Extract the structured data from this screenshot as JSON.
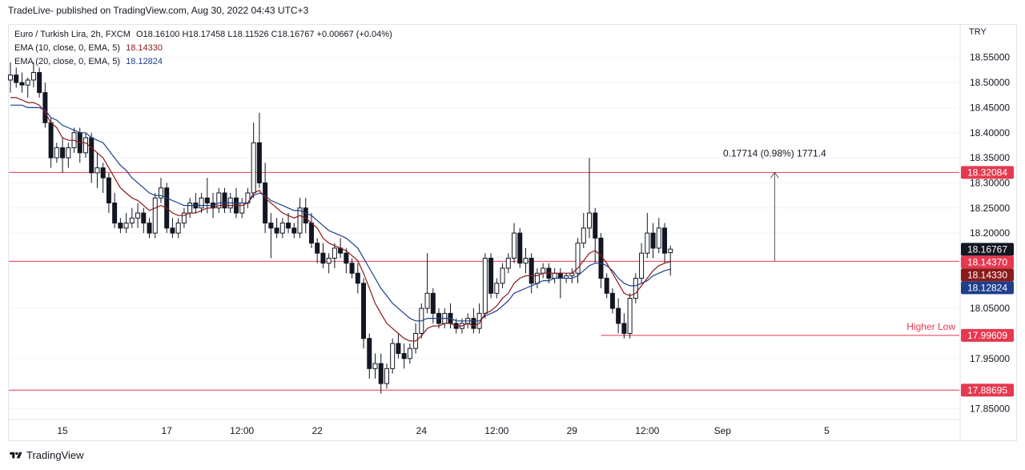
{
  "header": {
    "published_line": "TradeLive- published on TradingView.com, Aug 30, 2022 04:43 UTC+3"
  },
  "legend": {
    "symbol": "Euro / Turkish Lira, 2h, FXCM",
    "o_label": "O",
    "o_value": "18.16100",
    "h_label": "H",
    "h_value": "18.17458",
    "l_label": "L",
    "l_value": "18.11526",
    "c_label": "C",
    "c_value": "18.16767",
    "change": "+0.00667 (+0.04%)",
    "ema10_label": "EMA (10, close, 0, EMA, 5)",
    "ema10_value": "18.14330",
    "ema20_label": "EMA (20, close, 0, EMA, 5)",
    "ema20_value": "18.12824"
  },
  "currency": "TRY",
  "footer": {
    "brand": "TradingView"
  },
  "colors": {
    "up": "#ffffff",
    "down": "#131722",
    "wick": "#131722",
    "ema10": "#8b1a1a",
    "ema20": "#1e3f8a",
    "hline": "#e53950",
    "grid": "#f0f3fa",
    "axis": "#131722"
  },
  "chart_data": {
    "type": "candlestick",
    "ylim": [
      17.83,
      18.615
    ],
    "y_ticks": [
      "18.55000",
      "18.50000",
      "18.45000",
      "18.40000",
      "18.35000",
      "18.30000",
      "18.25000",
      "18.20000",
      "18.05000",
      "17.95000",
      "17.85000"
    ],
    "x_ticks": [
      {
        "label": "15",
        "bar": 9
      },
      {
        "label": "17",
        "bar": 27
      },
      {
        "label": "12:00",
        "bar": 40
      },
      {
        "label": "22",
        "bar": 53
      },
      {
        "label": "24",
        "bar": 71
      },
      {
        "label": "12:00",
        "bar": 84
      },
      {
        "label": "29",
        "bar": 97
      },
      {
        "label": "12:00",
        "bar": 110
      },
      {
        "label": "Sep",
        "bar": 123
      },
      {
        "label": "5",
        "bar": 141
      }
    ],
    "ohlc": [
      [
        18.505,
        18.54,
        18.48,
        18.515
      ],
      [
        18.515,
        18.53,
        18.49,
        18.5
      ],
      [
        18.5,
        18.52,
        18.48,
        18.495
      ],
      [
        18.495,
        18.51,
        18.47,
        18.505
      ],
      [
        18.505,
        18.54,
        18.49,
        18.52
      ],
      [
        18.52,
        18.53,
        18.47,
        18.48
      ],
      [
        18.48,
        18.5,
        18.41,
        18.42
      ],
      [
        18.42,
        18.43,
        18.33,
        18.35
      ],
      [
        18.35,
        18.38,
        18.34,
        18.37
      ],
      [
        18.37,
        18.39,
        18.32,
        18.35
      ],
      [
        18.35,
        18.38,
        18.33,
        18.37
      ],
      [
        18.37,
        18.41,
        18.36,
        18.4
      ],
      [
        18.4,
        18.41,
        18.34,
        18.36
      ],
      [
        18.36,
        18.4,
        18.35,
        18.39
      ],
      [
        18.39,
        18.4,
        18.3,
        18.32
      ],
      [
        18.32,
        18.36,
        18.29,
        18.33
      ],
      [
        18.33,
        18.34,
        18.28,
        18.31
      ],
      [
        18.31,
        18.32,
        18.24,
        18.26
      ],
      [
        18.26,
        18.28,
        18.21,
        18.22
      ],
      [
        18.22,
        18.23,
        18.2,
        18.21
      ],
      [
        18.21,
        18.24,
        18.2,
        18.22
      ],
      [
        18.22,
        18.25,
        18.21,
        18.23
      ],
      [
        18.23,
        18.26,
        18.21,
        18.24
      ],
      [
        18.24,
        18.25,
        18.2,
        18.22
      ],
      [
        18.22,
        18.23,
        18.19,
        18.2
      ],
      [
        18.2,
        18.28,
        18.19,
        18.27
      ],
      [
        18.27,
        18.31,
        18.26,
        18.29
      ],
      [
        18.29,
        18.3,
        18.2,
        18.21
      ],
      [
        18.21,
        18.23,
        18.19,
        18.2
      ],
      [
        18.2,
        18.23,
        18.19,
        18.22
      ],
      [
        18.22,
        18.25,
        18.21,
        18.24
      ],
      [
        18.24,
        18.27,
        18.23,
        18.26
      ],
      [
        18.26,
        18.28,
        18.24,
        18.25
      ],
      [
        18.25,
        18.28,
        18.24,
        18.27
      ],
      [
        18.27,
        18.31,
        18.24,
        18.26
      ],
      [
        18.26,
        18.28,
        18.23,
        18.25
      ],
      [
        18.25,
        18.29,
        18.24,
        18.28
      ],
      [
        18.28,
        18.29,
        18.24,
        18.25
      ],
      [
        18.25,
        18.28,
        18.24,
        18.27
      ],
      [
        18.27,
        18.29,
        18.23,
        18.24
      ],
      [
        18.24,
        18.27,
        18.23,
        18.26
      ],
      [
        18.26,
        18.29,
        18.25,
        18.28
      ],
      [
        18.28,
        18.42,
        18.27,
        18.38
      ],
      [
        18.38,
        18.44,
        18.29,
        18.3
      ],
      [
        18.3,
        18.34,
        18.2,
        18.22
      ],
      [
        18.22,
        18.24,
        18.15,
        18.21
      ],
      [
        18.21,
        18.23,
        18.19,
        18.2
      ],
      [
        18.2,
        18.23,
        18.19,
        18.22
      ],
      [
        18.22,
        18.24,
        18.2,
        18.21
      ],
      [
        18.21,
        18.22,
        18.19,
        18.2
      ],
      [
        18.2,
        18.27,
        18.19,
        18.25
      ],
      [
        18.25,
        18.27,
        18.2,
        18.22
      ],
      [
        18.22,
        18.24,
        18.17,
        18.18
      ],
      [
        18.18,
        18.19,
        18.14,
        18.16
      ],
      [
        18.16,
        18.18,
        18.13,
        18.14
      ],
      [
        18.14,
        18.16,
        18.12,
        18.15
      ],
      [
        18.15,
        18.18,
        18.13,
        18.17
      ],
      [
        18.17,
        18.19,
        18.15,
        18.16
      ],
      [
        18.16,
        18.17,
        18.12,
        18.14
      ],
      [
        18.14,
        18.15,
        18.11,
        18.12
      ],
      [
        18.12,
        18.14,
        18.08,
        18.1
      ],
      [
        18.1,
        18.11,
        17.97,
        17.99
      ],
      [
        17.99,
        18.0,
        17.91,
        17.93
      ],
      [
        17.93,
        17.96,
        17.91,
        17.94
      ],
      [
        17.94,
        17.96,
        17.88,
        17.9
      ],
      [
        17.9,
        17.94,
        17.89,
        17.93
      ],
      [
        17.93,
        17.99,
        17.92,
        17.98
      ],
      [
        17.98,
        18.0,
        17.95,
        17.96
      ],
      [
        17.96,
        17.98,
        17.93,
        17.95
      ],
      [
        17.95,
        17.98,
        17.94,
        17.97
      ],
      [
        17.97,
        18.02,
        17.96,
        18.0
      ],
      [
        18.0,
        18.06,
        17.99,
        18.05
      ],
      [
        18.05,
        18.16,
        18.04,
        18.08
      ],
      [
        18.08,
        18.09,
        18.02,
        18.04
      ],
      [
        18.04,
        18.05,
        18.01,
        18.02
      ],
      [
        18.02,
        18.05,
        18.01,
        18.04
      ],
      [
        18.04,
        18.06,
        18.01,
        18.02
      ],
      [
        18.02,
        18.03,
        18.0,
        18.01
      ],
      [
        18.01,
        18.03,
        18.0,
        18.02
      ],
      [
        18.02,
        18.04,
        18.01,
        18.03
      ],
      [
        18.03,
        18.05,
        18.0,
        18.01
      ],
      [
        18.01,
        18.06,
        18.0,
        18.04
      ],
      [
        18.04,
        18.16,
        18.03,
        18.15
      ],
      [
        18.15,
        18.16,
        18.07,
        18.08
      ],
      [
        18.08,
        18.11,
        18.07,
        18.1
      ],
      [
        18.1,
        18.14,
        18.09,
        18.13
      ],
      [
        18.13,
        18.16,
        18.12,
        18.15
      ],
      [
        18.15,
        18.22,
        18.14,
        18.2
      ],
      [
        18.2,
        18.21,
        18.13,
        18.14
      ],
      [
        18.14,
        18.17,
        18.12,
        18.15
      ],
      [
        18.15,
        18.16,
        18.08,
        18.1
      ],
      [
        18.1,
        18.13,
        18.09,
        18.12
      ],
      [
        18.12,
        18.14,
        18.11,
        18.13
      ],
      [
        18.13,
        18.14,
        18.1,
        18.11
      ],
      [
        18.11,
        18.13,
        18.1,
        18.12
      ],
      [
        18.12,
        18.13,
        18.07,
        18.11
      ],
      [
        18.11,
        18.12,
        18.1,
        18.115
      ],
      [
        18.115,
        18.13,
        18.1,
        18.12
      ],
      [
        18.12,
        18.19,
        18.1,
        18.18
      ],
      [
        18.18,
        18.24,
        18.17,
        18.21
      ],
      [
        18.21,
        18.35,
        18.19,
        18.24
      ],
      [
        18.24,
        18.25,
        18.14,
        18.19
      ],
      [
        18.19,
        18.2,
        18.09,
        18.11
      ],
      [
        18.11,
        18.12,
        18.07,
        18.08
      ],
      [
        18.08,
        18.09,
        18.04,
        18.05
      ],
      [
        18.05,
        18.07,
        18.0,
        18.02
      ],
      [
        18.02,
        18.04,
        17.99,
        18.0
      ],
      [
        18.0,
        18.08,
        17.99,
        18.07
      ],
      [
        18.07,
        18.12,
        18.06,
        18.11
      ],
      [
        18.11,
        18.18,
        18.1,
        18.16
      ],
      [
        18.16,
        18.24,
        18.15,
        18.2
      ],
      [
        18.2,
        18.22,
        18.15,
        18.17
      ],
      [
        18.17,
        18.23,
        18.16,
        18.21
      ],
      [
        18.21,
        18.22,
        18.14,
        18.16
      ],
      [
        18.161,
        18.175,
        18.115,
        18.168
      ]
    ],
    "ema10": [
      18.47,
      18.47,
      18.465,
      18.46,
      18.46,
      18.455,
      18.44,
      18.42,
      18.41,
      18.39,
      18.385,
      18.385,
      18.38,
      18.38,
      18.37,
      18.36,
      18.35,
      18.33,
      18.31,
      18.29,
      18.28,
      18.27,
      18.265,
      18.255,
      18.245,
      18.25,
      18.255,
      18.25,
      18.24,
      18.235,
      18.235,
      18.24,
      18.24,
      18.245,
      18.25,
      18.25,
      18.255,
      18.255,
      18.255,
      18.255,
      18.255,
      18.26,
      18.28,
      18.285,
      18.27,
      18.26,
      18.25,
      18.24,
      18.235,
      18.23,
      18.235,
      18.23,
      18.22,
      18.21,
      18.19,
      18.18,
      18.175,
      18.17,
      18.165,
      18.155,
      18.145,
      18.12,
      18.09,
      18.06,
      18.04,
      18.02,
      18.01,
      18.0,
      17.99,
      17.985,
      17.985,
      17.995,
      18.01,
      18.015,
      18.015,
      18.02,
      18.02,
      18.015,
      18.015,
      18.02,
      18.015,
      18.02,
      18.04,
      18.045,
      18.055,
      18.07,
      18.08,
      18.1,
      18.11,
      18.115,
      18.115,
      18.115,
      18.12,
      18.12,
      18.12,
      18.12,
      18.12,
      18.12,
      18.13,
      18.145,
      18.16,
      18.165,
      18.155,
      18.14,
      18.12,
      18.1,
      18.08,
      18.075,
      18.08,
      18.095,
      18.11,
      18.125,
      18.135,
      18.14,
      18.143
    ],
    "ema20": [
      18.455,
      18.455,
      18.455,
      18.45,
      18.45,
      18.45,
      18.445,
      18.43,
      18.425,
      18.415,
      18.41,
      18.405,
      18.4,
      18.4,
      18.39,
      18.385,
      18.38,
      18.365,
      18.35,
      18.335,
      18.325,
      18.31,
      18.3,
      18.29,
      18.28,
      18.275,
      18.275,
      18.27,
      18.265,
      18.26,
      18.255,
      18.255,
      18.255,
      18.255,
      18.255,
      18.255,
      18.26,
      18.26,
      18.26,
      18.26,
      18.26,
      18.26,
      18.275,
      18.28,
      18.275,
      18.265,
      18.26,
      18.255,
      18.25,
      18.245,
      18.245,
      18.24,
      18.235,
      18.225,
      18.215,
      18.205,
      18.2,
      18.195,
      18.19,
      18.18,
      18.17,
      18.15,
      18.13,
      18.11,
      18.09,
      18.075,
      18.06,
      18.05,
      18.04,
      18.03,
      18.025,
      18.025,
      18.03,
      18.03,
      18.03,
      18.03,
      18.03,
      18.025,
      18.025,
      18.025,
      18.025,
      18.025,
      18.035,
      18.04,
      18.045,
      18.055,
      18.065,
      18.08,
      18.085,
      18.09,
      18.095,
      18.1,
      18.105,
      18.105,
      18.11,
      18.11,
      18.11,
      18.11,
      18.115,
      18.125,
      18.135,
      18.14,
      18.14,
      18.135,
      18.125,
      18.11,
      18.1,
      18.095,
      18.095,
      18.1,
      18.105,
      18.115,
      18.12,
      18.125,
      18.128
    ],
    "hlines": [
      {
        "price": 18.32084,
        "label": "18.32084"
      },
      {
        "price": 18.1437,
        "label": "18.14370"
      },
      {
        "price": 17.88695,
        "label": "17.88695"
      }
    ],
    "higher_low": {
      "price": 17.99609,
      "label": "18.00 ",
      "tag": "17.99609",
      "text": "Higher Low",
      "from_bar": 102
    },
    "price_tags": [
      {
        "price": 18.16767,
        "label": "18.16767",
        "color": "#131722",
        "text_color": "#ffffff"
      },
      {
        "price": 18.1437,
        "label": "18.14370",
        "color": "#e53950",
        "text_color": "#ffffff"
      },
      {
        "price": 18.1433,
        "label": "18.14330",
        "color": "#8b1a1a",
        "text_color": "#ffffff"
      },
      {
        "price": 18.12824,
        "label": "18.12824",
        "color": "#1e3f8a",
        "text_color": "#ffffff"
      },
      {
        "price": 18.32084,
        "label": "18.32084",
        "color": "#e53950",
        "text_color": "#ffffff"
      },
      {
        "price": 17.99609,
        "label": "17.99609",
        "color": "#e53950",
        "text_color": "#ffffff"
      },
      {
        "price": 17.88695,
        "label": "17.88695",
        "color": "#e53950",
        "text_color": "#ffffff"
      }
    ],
    "measure": {
      "text": "0.17714 (0.98%) 1771.4",
      "from_price": 18.1437,
      "to_price": 18.32084,
      "bar": 132
    }
  }
}
